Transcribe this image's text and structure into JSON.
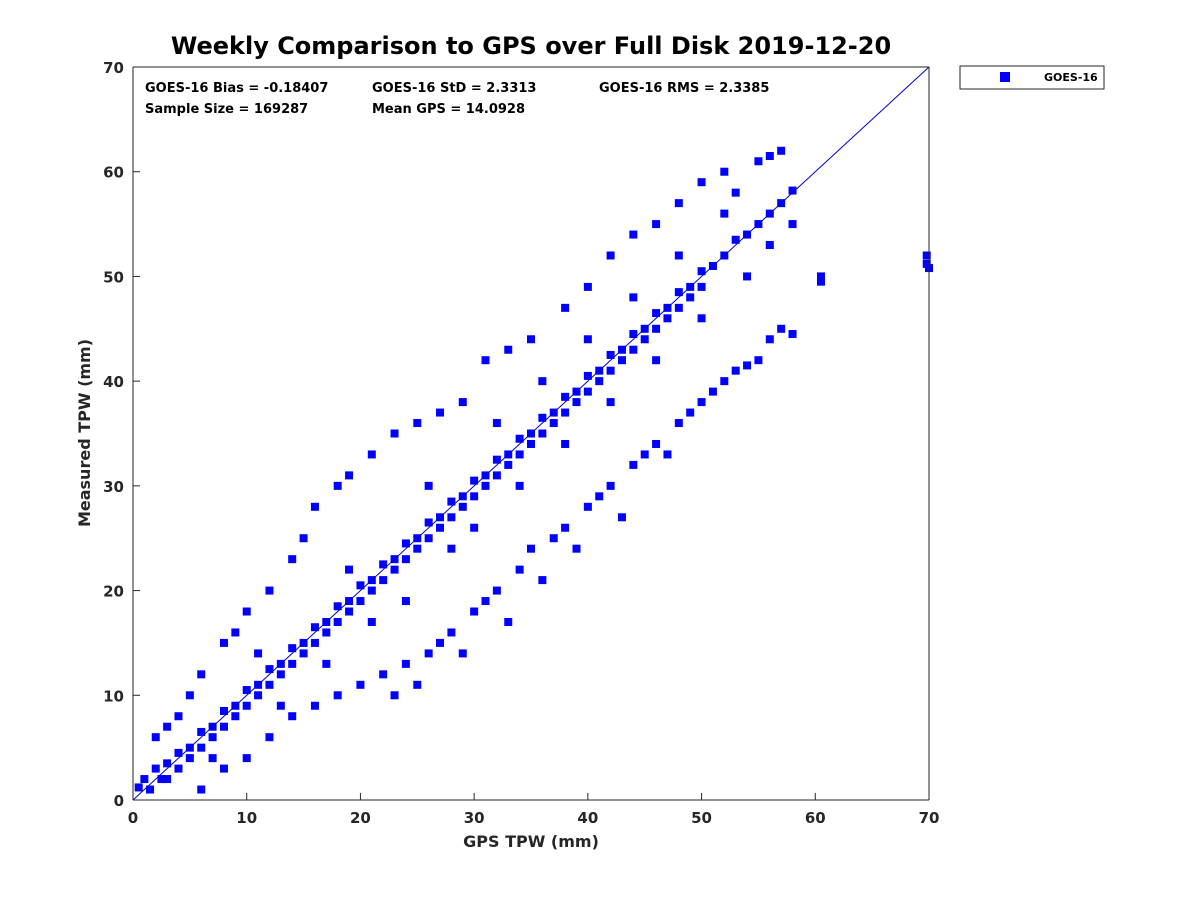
{
  "chart_data": {
    "type": "scatter",
    "title": "Weekly Comparison to GPS over Full Disk 2019-12-20",
    "xlabel": "GPS TPW (mm)",
    "ylabel": "Measured TPW (mm)",
    "xlim": [
      0,
      70
    ],
    "ylim": [
      0,
      70
    ],
    "xticks": [
      "0",
      "10",
      "20",
      "30",
      "40",
      "50",
      "60",
      "70"
    ],
    "yticks": [
      "0",
      "10",
      "20",
      "30",
      "40",
      "50",
      "60",
      "70"
    ],
    "grid": false,
    "legend_position": "outside-top-right",
    "reference_line": {
      "x": [
        0,
        70
      ],
      "y": [
        0,
        70
      ],
      "color": "#0000cc"
    },
    "stats": [
      {
        "text": "GOES-16 Bias = -0.18407"
      },
      {
        "text": "GOES-16 StD = 2.3313"
      },
      {
        "text": "GOES-16 RMS = 2.3385"
      },
      {
        "text": "Sample Size = 169287"
      },
      {
        "text": "Mean GPS = 14.0928"
      }
    ],
    "series": [
      {
        "name": "GOES-16",
        "color": "#0000ff",
        "marker": "square",
        "points": [
          [
            0.5,
            1.2
          ],
          [
            1,
            2
          ],
          [
            1.5,
            1
          ],
          [
            2,
            3
          ],
          [
            2.5,
            2
          ],
          [
            3,
            3.5
          ],
          [
            3,
            2
          ],
          [
            4,
            4.5
          ],
          [
            4,
            3
          ],
          [
            5,
            5
          ],
          [
            5,
            4
          ],
          [
            6,
            6.5
          ],
          [
            6,
            5
          ],
          [
            7,
            7
          ],
          [
            7,
            6
          ],
          [
            8,
            8.5
          ],
          [
            8,
            7
          ],
          [
            9,
            9
          ],
          [
            9,
            8
          ],
          [
            10,
            10.5
          ],
          [
            10,
            9
          ],
          [
            11,
            11
          ],
          [
            11,
            10
          ],
          [
            12,
            12.5
          ],
          [
            12,
            11
          ],
          [
            13,
            13
          ],
          [
            13,
            12
          ],
          [
            14,
            14.5
          ],
          [
            14,
            13
          ],
          [
            15,
            15
          ],
          [
            15,
            14
          ],
          [
            16,
            16.5
          ],
          [
            16,
            15
          ],
          [
            17,
            17
          ],
          [
            17,
            16
          ],
          [
            18,
            18.5
          ],
          [
            18,
            17
          ],
          [
            19,
            19
          ],
          [
            19,
            18
          ],
          [
            20,
            20.5
          ],
          [
            20,
            19
          ],
          [
            21,
            21
          ],
          [
            21,
            20
          ],
          [
            22,
            22.5
          ],
          [
            22,
            21
          ],
          [
            23,
            23
          ],
          [
            23,
            22
          ],
          [
            24,
            24.5
          ],
          [
            24,
            23
          ],
          [
            25,
            25
          ],
          [
            25,
            24
          ],
          [
            26,
            26.5
          ],
          [
            26,
            25
          ],
          [
            27,
            27
          ],
          [
            27,
            26
          ],
          [
            28,
            28.5
          ],
          [
            28,
            27
          ],
          [
            29,
            29
          ],
          [
            29,
            28
          ],
          [
            30,
            30.5
          ],
          [
            30,
            29
          ],
          [
            31,
            31
          ],
          [
            31,
            30
          ],
          [
            32,
            32.5
          ],
          [
            32,
            31
          ],
          [
            33,
            33
          ],
          [
            33,
            32
          ],
          [
            34,
            34.5
          ],
          [
            34,
            33
          ],
          [
            35,
            35
          ],
          [
            35,
            34
          ],
          [
            36,
            36.5
          ],
          [
            36,
            35
          ],
          [
            37,
            37
          ],
          [
            37,
            36
          ],
          [
            38,
            38.5
          ],
          [
            38,
            37
          ],
          [
            39,
            39
          ],
          [
            39,
            38
          ],
          [
            40,
            40.5
          ],
          [
            40,
            39
          ],
          [
            41,
            41
          ],
          [
            41,
            40
          ],
          [
            42,
            42.5
          ],
          [
            42,
            41
          ],
          [
            43,
            43
          ],
          [
            43,
            42
          ],
          [
            44,
            44.5
          ],
          [
            44,
            43
          ],
          [
            45,
            45
          ],
          [
            45,
            44
          ],
          [
            46,
            46.5
          ],
          [
            46,
            45
          ],
          [
            47,
            47
          ],
          [
            47,
            46
          ],
          [
            48,
            48.5
          ],
          [
            48,
            47
          ],
          [
            49,
            49
          ],
          [
            49,
            48
          ],
          [
            50,
            50.5
          ],
          [
            50,
            49
          ],
          [
            51,
            51
          ],
          [
            52,
            52
          ],
          [
            53,
            53.5
          ],
          [
            54,
            54
          ],
          [
            55,
            55
          ],
          [
            56,
            56
          ],
          [
            57,
            57
          ],
          [
            58,
            58.2
          ],
          [
            2,
            6
          ],
          [
            3,
            7
          ],
          [
            5,
            10
          ],
          [
            6,
            12
          ],
          [
            8,
            15
          ],
          [
            9,
            16
          ],
          [
            10,
            18
          ],
          [
            12,
            20
          ],
          [
            14,
            23
          ],
          [
            15,
            25
          ],
          [
            16,
            28
          ],
          [
            18,
            30
          ],
          [
            19,
            31
          ],
          [
            21,
            33
          ],
          [
            23,
            35
          ],
          [
            25,
            36
          ],
          [
            27,
            37
          ],
          [
            29,
            38
          ],
          [
            31,
            42
          ],
          [
            33,
            43
          ],
          [
            35,
            44
          ],
          [
            38,
            47
          ],
          [
            40,
            49
          ],
          [
            42,
            52
          ],
          [
            44,
            54
          ],
          [
            46,
            55
          ],
          [
            48,
            57
          ],
          [
            50,
            59
          ],
          [
            52,
            60
          ],
          [
            55,
            61
          ],
          [
            57,
            62
          ],
          [
            56,
            61.5
          ],
          [
            53,
            58
          ],
          [
            6,
            1
          ],
          [
            8,
            3
          ],
          [
            10,
            4
          ],
          [
            12,
            6
          ],
          [
            14,
            8
          ],
          [
            16,
            9
          ],
          [
            18,
            10
          ],
          [
            20,
            11
          ],
          [
            22,
            12
          ],
          [
            23,
            10
          ],
          [
            24,
            13
          ],
          [
            25,
            11
          ],
          [
            26,
            14
          ],
          [
            27,
            15
          ],
          [
            28,
            16
          ],
          [
            29,
            14
          ],
          [
            30,
            18
          ],
          [
            31,
            19
          ],
          [
            32,
            20
          ],
          [
            33,
            17
          ],
          [
            34,
            22
          ],
          [
            35,
            24
          ],
          [
            36,
            21
          ],
          [
            37,
            25
          ],
          [
            38,
            26
          ],
          [
            39,
            24
          ],
          [
            40,
            28
          ],
          [
            41,
            29
          ],
          [
            42,
            30
          ],
          [
            43,
            27
          ],
          [
            44,
            32
          ],
          [
            45,
            33
          ],
          [
            46,
            34
          ],
          [
            47,
            33
          ],
          [
            48,
            36
          ],
          [
            49,
            37
          ],
          [
            50,
            38
          ],
          [
            51,
            39
          ],
          [
            52,
            40
          ],
          [
            53,
            41
          ],
          [
            54,
            41.5
          ],
          [
            55,
            42
          ],
          [
            56,
            44
          ],
          [
            57,
            45
          ],
          [
            58,
            44.5
          ],
          [
            60.5,
            50
          ],
          [
            60.5,
            49.5
          ],
          [
            69.8,
            52
          ],
          [
            69.8,
            51.2
          ],
          [
            70,
            50.8
          ],
          [
            4,
            8
          ],
          [
            7,
            4
          ],
          [
            11,
            14
          ],
          [
            13,
            9
          ],
          [
            17,
            13
          ],
          [
            19,
            22
          ],
          [
            21,
            17
          ],
          [
            24,
            19
          ],
          [
            26,
            30
          ],
          [
            28,
            24
          ],
          [
            30,
            26
          ],
          [
            32,
            36
          ],
          [
            34,
            30
          ],
          [
            36,
            40
          ],
          [
            38,
            34
          ],
          [
            40,
            44
          ],
          [
            42,
            38
          ],
          [
            44,
            48
          ],
          [
            46,
            42
          ],
          [
            48,
            52
          ],
          [
            50,
            46
          ],
          [
            52,
            56
          ],
          [
            54,
            50
          ],
          [
            56,
            53
          ],
          [
            58,
            55
          ]
        ]
      }
    ]
  }
}
